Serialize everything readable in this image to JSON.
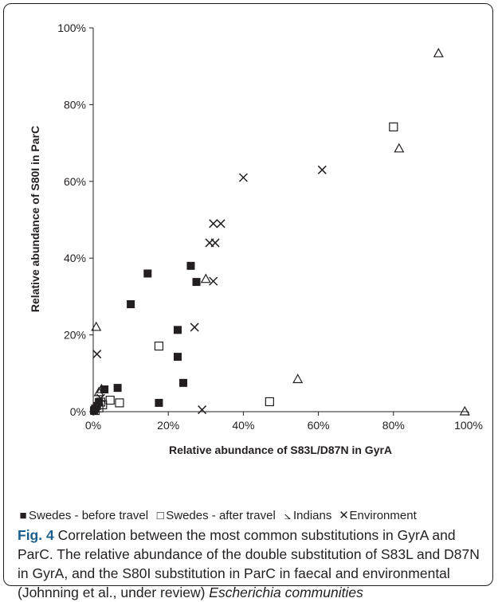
{
  "chart_data": {
    "type": "scatter",
    "xlabel": "Relative abundance of S83L/D87N in GyrA",
    "ylabel": "Relative abundance of S80I in ParC",
    "xlim": [
      0,
      100
    ],
    "ylim": [
      0,
      100
    ],
    "x_ticks": [
      "0%",
      "20%",
      "40%",
      "60%",
      "80%",
      "100%"
    ],
    "y_ticks": [
      "0%",
      "20%",
      "40%",
      "60%",
      "80%",
      "100%"
    ],
    "grid": false,
    "legend_position": "bottom",
    "series": [
      {
        "name": "Swedes - before travel",
        "marker": "filled-square",
        "color": "#231f20",
        "points": [
          {
            "x": 0.2,
            "y": 0.3
          },
          {
            "x": 0.5,
            "y": 0.8
          },
          {
            "x": 1,
            "y": 1.5
          },
          {
            "x": 1.5,
            "y": 2.5
          },
          {
            "x": 3,
            "y": 5.8
          },
          {
            "x": 6.5,
            "y": 6.2
          },
          {
            "x": 10,
            "y": 28
          },
          {
            "x": 14.5,
            "y": 36
          },
          {
            "x": 17.5,
            "y": 2.3
          },
          {
            "x": 22.5,
            "y": 21.3
          },
          {
            "x": 22.5,
            "y": 14.3
          },
          {
            "x": 24,
            "y": 7.5
          },
          {
            "x": 26,
            "y": 38
          },
          {
            "x": 27.5,
            "y": 33.8
          }
        ]
      },
      {
        "name": "Swedes - after travel",
        "marker": "open-square",
        "color": "#231f20",
        "points": [
          {
            "x": 0.5,
            "y": 0.3
          },
          {
            "x": 1.5,
            "y": 1
          },
          {
            "x": 2,
            "y": 2.5
          },
          {
            "x": 2.5,
            "y": 1.8
          },
          {
            "x": 4.5,
            "y": 3
          },
          {
            "x": 7,
            "y": 2.3
          },
          {
            "x": 17.5,
            "y": 17.1
          },
          {
            "x": 47,
            "y": 2.6
          },
          {
            "x": 80,
            "y": 74.2
          }
        ]
      },
      {
        "name": "Indians",
        "marker": "open-triangle",
        "color": "#231f20",
        "points": [
          {
            "x": 0.8,
            "y": 22
          },
          {
            "x": 1.5,
            "y": 5
          },
          {
            "x": 2.2,
            "y": 5.8
          },
          {
            "x": 30,
            "y": 34.5
          },
          {
            "x": 54.5,
            "y": 8.4
          },
          {
            "x": 81.5,
            "y": 68.5
          },
          {
            "x": 92,
            "y": 93.3
          },
          {
            "x": 99,
            "y": 0
          }
        ]
      },
      {
        "name": "Environment",
        "marker": "x",
        "color": "#231f20",
        "points": [
          {
            "x": 1,
            "y": 15
          },
          {
            "x": 2,
            "y": 3.5
          },
          {
            "x": 27,
            "y": 22
          },
          {
            "x": 29,
            "y": 0.5
          },
          {
            "x": 31,
            "y": 44
          },
          {
            "x": 32.5,
            "y": 44
          },
          {
            "x": 32,
            "y": 34
          },
          {
            "x": 32,
            "y": 49
          },
          {
            "x": 34,
            "y": 49
          },
          {
            "x": 40,
            "y": 61
          },
          {
            "x": 61,
            "y": 63
          }
        ]
      }
    ]
  },
  "legend": [
    {
      "symbol": "■",
      "label": "Swedes - before travel"
    },
    {
      "symbol": "□",
      "label": "Swedes - after travel"
    },
    {
      "symbol": "⦣",
      "label": "Indians"
    },
    {
      "symbol": "✕",
      "label": "Environment"
    }
  ],
  "caption": {
    "fig_label": "Fig. 4",
    "text_main": " Correlation between the most common substitutions in GyrA and ParC. The relative abundance of the double substitution of S83L and D87N in GyrA, and the S80I substitution in ParC in faecal and environmental (Johnning et al., under review) ",
    "text_italic": "Escherichia communities"
  }
}
